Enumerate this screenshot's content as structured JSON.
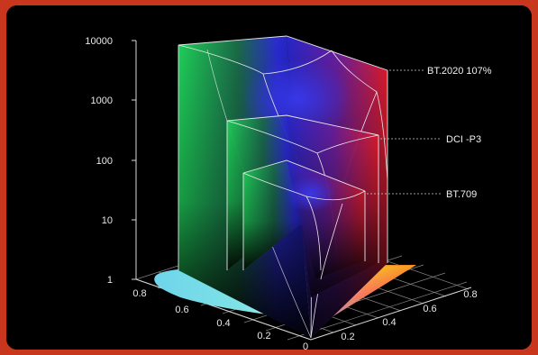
{
  "y_axis": {
    "ticks": [
      "10000",
      "1000",
      "100",
      "10",
      "1"
    ],
    "scale": "log"
  },
  "left_axis": {
    "ticks": [
      "0.8",
      "0.6",
      "0.4",
      "0.2",
      "0"
    ]
  },
  "right_axis": {
    "ticks": [
      "0.2",
      "0.4",
      "0.6",
      "0.8"
    ]
  },
  "volumes": [
    {
      "label": "BT.2020 107%",
      "peak": 10000
    },
    {
      "label": "DCI -P3",
      "peak": 1000
    },
    {
      "label": "BT.709",
      "peak": 100
    }
  ],
  "colors": {
    "outer_background": "#c8361d",
    "panel_background": "#000000",
    "primary_green": "#19c85a",
    "primary_red": "#e8203a",
    "primary_blue": "#2a2ad8",
    "magenta": "#e01caa",
    "cyan": "#5ad8ec",
    "yellow": "#f4e21c"
  }
}
